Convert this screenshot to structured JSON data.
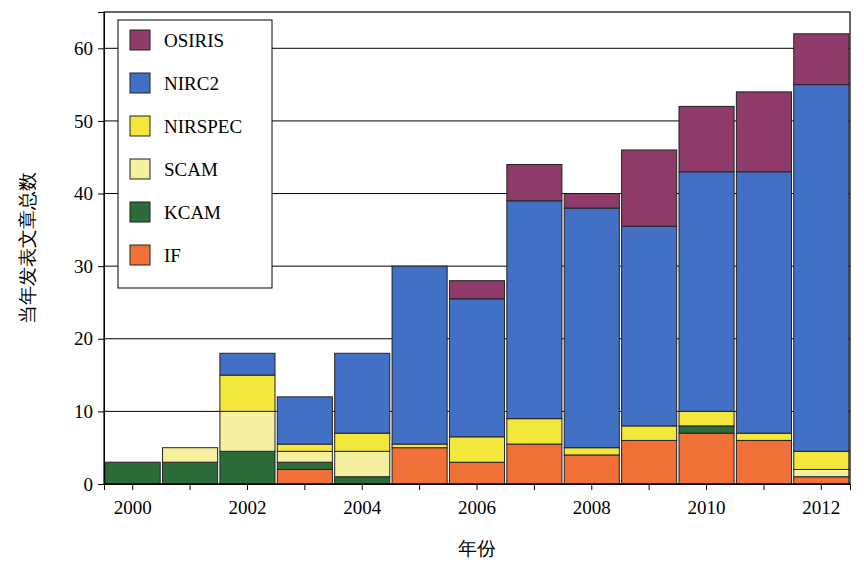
{
  "chart_data": {
    "type": "bar",
    "stacked": true,
    "x_label": "年份",
    "y_label": "当年发表文章总数",
    "categories": [
      "2000",
      null,
      "2002",
      null,
      "2004",
      null,
      "2006",
      null,
      "2008",
      null,
      "2010",
      null,
      "2012"
    ],
    "series": [
      {
        "name": "IF",
        "color": "#f07038",
        "values": [
          0,
          0,
          0,
          2,
          0,
          5,
          3,
          5.5,
          4,
          6,
          7,
          6,
          1
        ]
      },
      {
        "name": "KCAM",
        "color": "#2e6b3a",
        "values": [
          3,
          3,
          4.5,
          1,
          1,
          0,
          0,
          0,
          0,
          0,
          1,
          0,
          0
        ]
      },
      {
        "name": "SCAM",
        "color": "#f4f0a0",
        "values": [
          0,
          2,
          5.5,
          1.5,
          3.5,
          0,
          0,
          0,
          0,
          0,
          0,
          0,
          1
        ]
      },
      {
        "name": "NIRSPEC",
        "color": "#f2e73a",
        "values": [
          0,
          0,
          5,
          1,
          2.5,
          0.5,
          3.5,
          3.5,
          1,
          2,
          2,
          1,
          2.5
        ]
      },
      {
        "name": "NIRC2",
        "color": "#4170c4",
        "values": [
          0,
          0,
          3,
          6.5,
          11,
          24.5,
          19,
          30,
          33,
          27.5,
          33,
          36,
          50.5
        ]
      },
      {
        "name": "OSIRIS",
        "color": "#8e3b69",
        "values": [
          0,
          0,
          0,
          0,
          0,
          0,
          2.5,
          5,
          2,
          10.5,
          9,
          11,
          7
        ]
      }
    ],
    "ylim": [
      0,
      65
    ],
    "yticks": [
      0,
      10,
      20,
      30,
      40,
      50,
      60
    ],
    "grid": true,
    "legend": "upper left"
  }
}
